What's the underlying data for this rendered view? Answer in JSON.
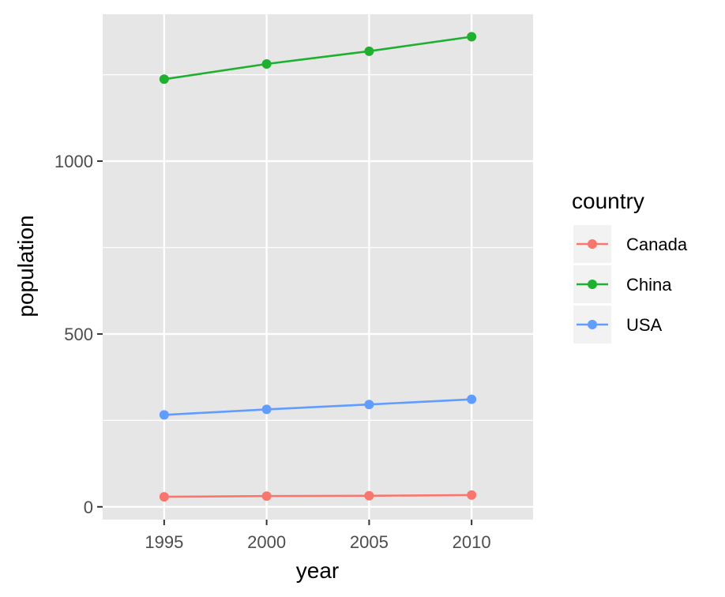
{
  "chart_data": {
    "type": "line",
    "title": "",
    "xlabel": "year",
    "ylabel": "population",
    "x": [
      1995,
      2000,
      2005,
      2010
    ],
    "x_ticks": [
      "1995",
      "2000",
      "2005",
      "2010"
    ],
    "y_ticks": [
      "0",
      "500",
      "1000"
    ],
    "xlim": [
      1992,
      2013
    ],
    "ylim": [
      -37,
      1425
    ],
    "grid": true,
    "legend": {
      "title": "country",
      "position": "right"
    },
    "series": [
      {
        "name": "Canada",
        "color": "#F8766D",
        "values": [
          29,
          31,
          32,
          34
        ]
      },
      {
        "name": "China",
        "color": "#1FB02F",
        "values": [
          1237,
          1281,
          1318,
          1360
        ]
      },
      {
        "name": "USA",
        "color": "#619CFF",
        "values": [
          266,
          282,
          296,
          311
        ]
      }
    ],
    "panel_background": "#E6E6E6",
    "grid_color": "#FFFFFF"
  }
}
